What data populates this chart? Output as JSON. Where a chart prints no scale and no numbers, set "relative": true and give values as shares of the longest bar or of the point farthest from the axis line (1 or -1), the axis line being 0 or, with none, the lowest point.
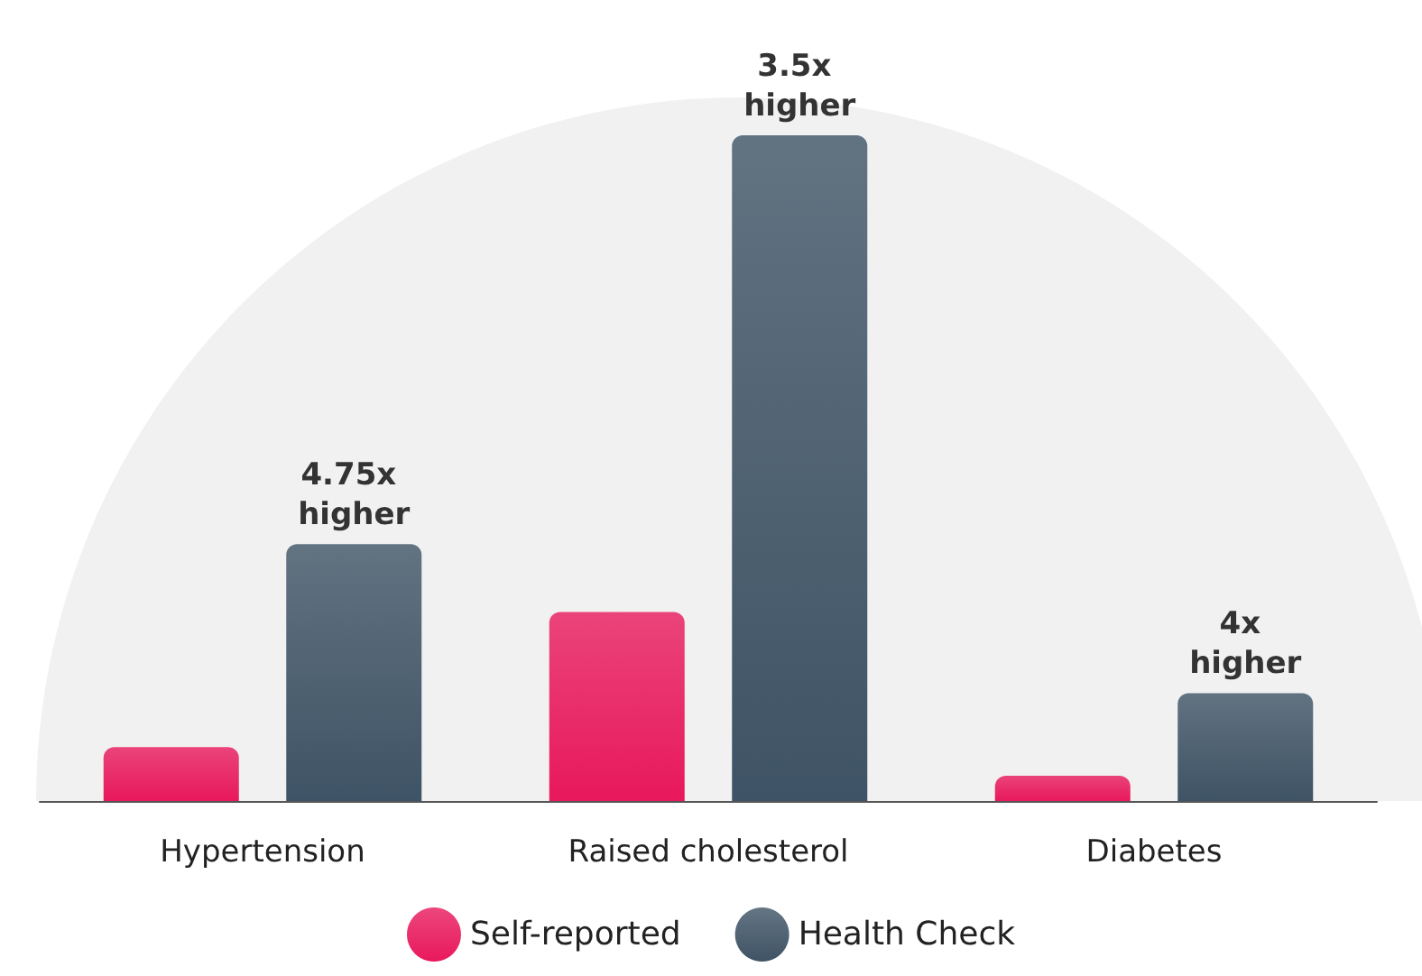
{
  "chart_data": {
    "type": "bar",
    "relative": true,
    "categories": [
      "Hypertension",
      "Raised cholesterol",
      "Diabetes"
    ],
    "series": [
      {
        "name": "Self-reported",
        "color": "#e8185c",
        "values": [
          0.081,
          0.284,
          0.038
        ]
      },
      {
        "name": "Health Check",
        "color": "#3e5365",
        "values": [
          0.386,
          1,
          0.162
        ]
      }
    ],
    "annotations": [
      "4.75x higher",
      "3.5x higher",
      "4x higher"
    ],
    "legend": "bottom"
  }
}
